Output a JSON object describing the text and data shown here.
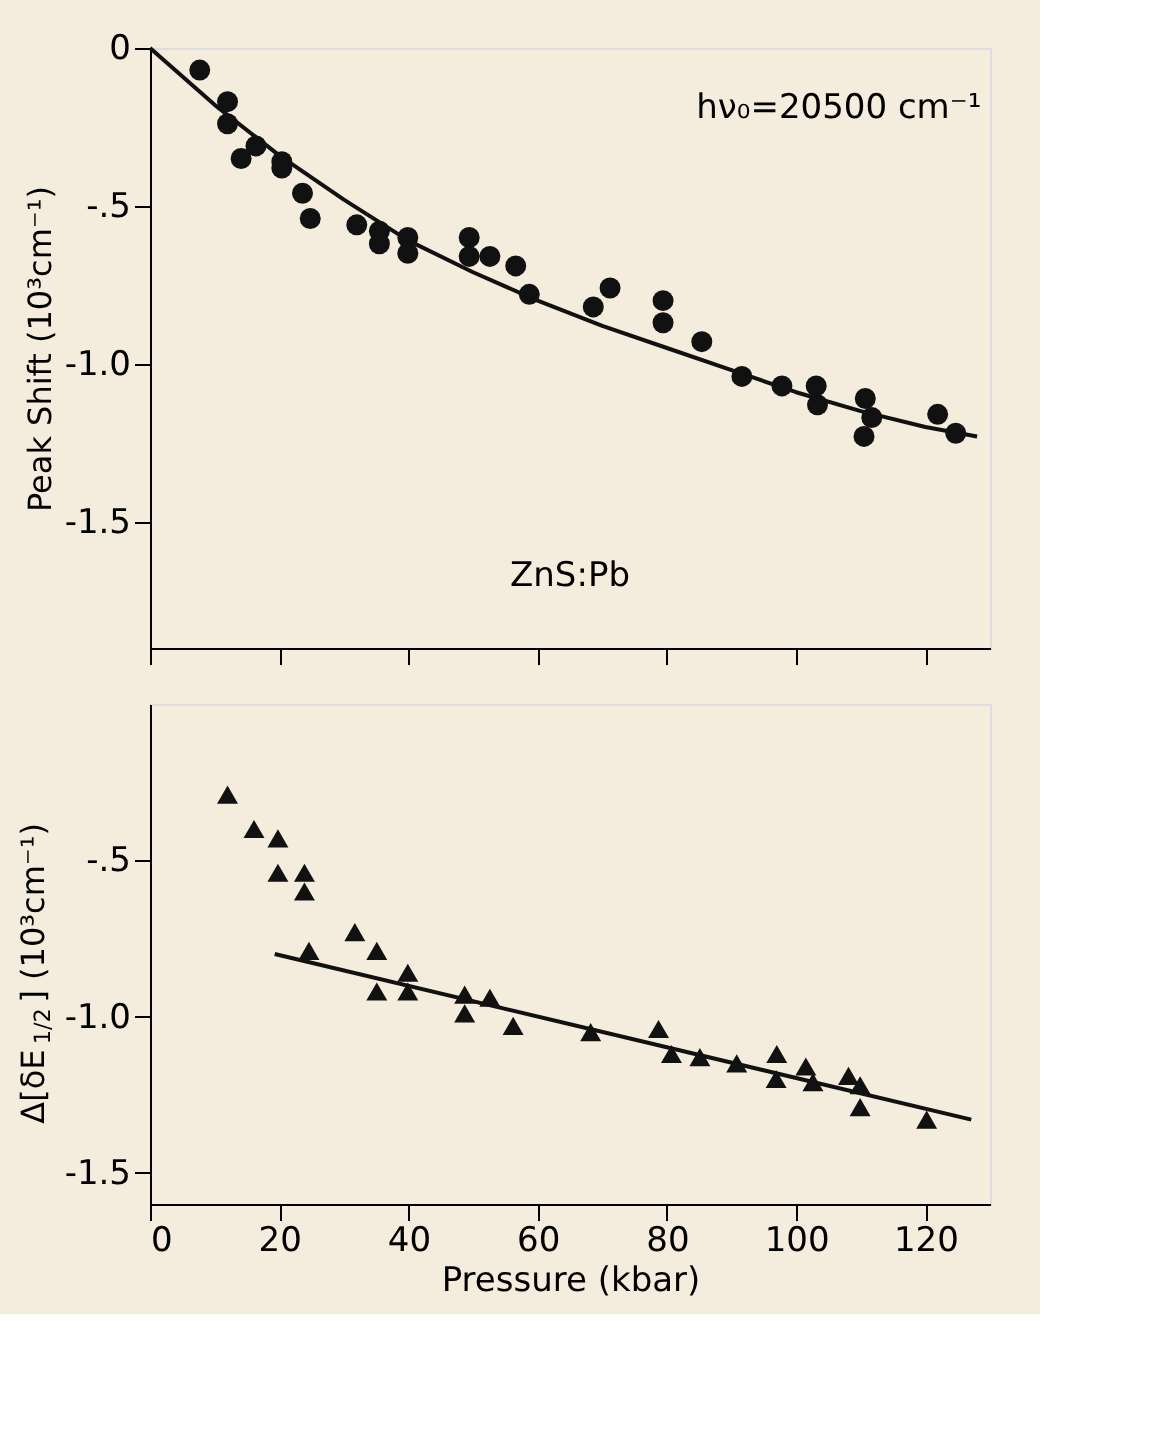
{
  "chart_data": [
    {
      "type": "scatter",
      "ylabel": "Peak Shift (10³cm⁻¹)",
      "annotations": [
        "hν₀=20500 cm⁻¹",
        "ZnS:Pb"
      ],
      "xlim": [
        0,
        130
      ],
      "xticks": [
        0,
        20,
        40,
        60,
        80,
        100,
        120
      ],
      "ylim": [
        -1.9,
        0
      ],
      "yticks": [
        0,
        {
          "value": -0.5,
          "label": "-.5"
        },
        {
          "value": -1.0,
          "label": "-1.0"
        },
        {
          "value": -1.5,
          "label": "-1.5"
        }
      ],
      "tick_labels": "y",
      "grid": false,
      "series": [
        {
          "type": "scatter",
          "marker": "circle",
          "color": "#111111",
          "x": [
            7.7,
            12.0,
            12.0,
            14.1,
            16.4,
            20.4,
            20.4,
            23.6,
            24.8,
            32.0,
            35.5,
            35.5,
            39.9,
            39.9,
            49.4,
            49.4,
            52.6,
            56.6,
            58.7,
            68.6,
            71.2,
            79.4,
            79.4,
            85.4,
            91.6,
            97.8,
            103.1,
            103.3,
            110.7,
            111.7,
            110.5,
            121.9,
            124.7
          ],
          "values": [
            -0.07,
            -0.17,
            -0.24,
            -0.35,
            -0.31,
            -0.36,
            -0.38,
            -0.46,
            -0.54,
            -0.56,
            -0.58,
            -0.62,
            -0.6,
            -0.65,
            -0.6,
            -0.66,
            -0.66,
            -0.69,
            -0.78,
            -0.82,
            -0.76,
            -0.8,
            -0.87,
            -0.93,
            -1.04,
            -1.07,
            -1.07,
            -1.13,
            -1.11,
            -1.17,
            -1.23,
            -1.16,
            -1.22
          ]
        },
        {
          "type": "line",
          "marker": "none",
          "line_style": "solid",
          "color": "#111111",
          "x": [
            0,
            10,
            20,
            30,
            40,
            50,
            60,
            70,
            80,
            90,
            100,
            110,
            120,
            128
          ],
          "values": [
            0,
            -0.18,
            -0.34,
            -0.48,
            -0.61,
            -0.71,
            -0.8,
            -0.88,
            -0.95,
            -1.02,
            -1.09,
            -1.15,
            -1.2,
            -1.23
          ]
        }
      ]
    },
    {
      "type": "scatter",
      "xlabel": "Pressure (kbar)",
      "ylabel": "Δ[δE$_{1/2}$] (10³cm⁻¹)",
      "xlim": [
        0,
        130
      ],
      "xticks": [
        0,
        20,
        40,
        60,
        80,
        100,
        120
      ],
      "ylim": [
        -1.6,
        0
      ],
      "yticks": [
        {
          "value": -0.5,
          "label": "-.5"
        },
        {
          "value": -1.0,
          "label": "-1.0"
        },
        {
          "value": -1.5,
          "label": "-1.5"
        }
      ],
      "grid": false,
      "series": [
        {
          "type": "scatter",
          "marker": "triangle",
          "color": "#111111",
          "x": [
            12.0,
            16.1,
            19.8,
            19.8,
            23.9,
            23.9,
            24.6,
            31.7,
            35.1,
            35.1,
            39.9,
            39.9,
            48.7,
            48.7,
            52.6,
            56.2,
            68.2,
            78.7,
            80.7,
            85.1,
            90.8,
            97.0,
            96.9,
            101.5,
            102.6,
            108.1,
            109.9,
            109.9,
            120.2
          ],
          "values": [
            -0.29,
            -0.4,
            -0.43,
            -0.54,
            -0.54,
            -0.6,
            -0.79,
            -0.73,
            -0.79,
            -0.92,
            -0.86,
            -0.92,
            -0.93,
            -0.99,
            -0.94,
            -1.03,
            -1.05,
            -1.04,
            -1.12,
            -1.13,
            -1.15,
            -1.12,
            -1.2,
            -1.16,
            -1.21,
            -1.19,
            -1.22,
            -1.29,
            -1.33
          ]
        },
        {
          "type": "line",
          "marker": "none",
          "line_style": "solid",
          "color": "#111111",
          "x": [
            19.3,
            127.1
          ],
          "values": [
            -0.8,
            -1.33
          ]
        }
      ]
    }
  ]
}
